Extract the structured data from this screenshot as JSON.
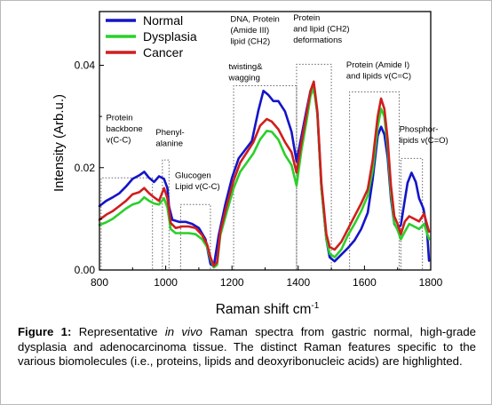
{
  "chart_data": {
    "type": "line",
    "xlabel": "Raman shift cm",
    "xlabel_sup": "-1",
    "ylabel": "Intensity (Arb.u.)",
    "xlim": [
      800,
      1800
    ],
    "ylim": [
      0.0,
      0.0505
    ],
    "xticks": [
      "800",
      "1000",
      "1200",
      "1400",
      "1600",
      "1800"
    ],
    "yticks": [
      "0.00",
      "0.02",
      "0.04"
    ],
    "legend_position": "top-left",
    "series": [
      {
        "name": "Normal",
        "color": "#1414c8",
        "points": [
          [
            800,
            0.0125
          ],
          [
            820,
            0.0135
          ],
          [
            840,
            0.0142
          ],
          [
            860,
            0.015
          ],
          [
            880,
            0.0163
          ],
          [
            900,
            0.0178
          ],
          [
            920,
            0.0185
          ],
          [
            935,
            0.0192
          ],
          [
            950,
            0.018
          ],
          [
            965,
            0.0172
          ],
          [
            980,
            0.0183
          ],
          [
            995,
            0.0178
          ],
          [
            1005,
            0.016
          ],
          [
            1010,
            0.0124
          ],
          [
            1020,
            0.0098
          ],
          [
            1040,
            0.0094
          ],
          [
            1060,
            0.0094
          ],
          [
            1080,
            0.009
          ],
          [
            1100,
            0.0082
          ],
          [
            1120,
            0.006
          ],
          [
            1135,
            0.0012
          ],
          [
            1145,
            0.0007
          ],
          [
            1160,
            0.0068
          ],
          [
            1180,
            0.0128
          ],
          [
            1200,
            0.018
          ],
          [
            1220,
            0.0218
          ],
          [
            1240,
            0.0235
          ],
          [
            1260,
            0.0252
          ],
          [
            1280,
            0.0312
          ],
          [
            1295,
            0.035
          ],
          [
            1310,
            0.0342
          ],
          [
            1325,
            0.033
          ],
          [
            1340,
            0.033
          ],
          [
            1360,
            0.031
          ],
          [
            1380,
            0.027
          ],
          [
            1395,
            0.0212
          ],
          [
            1410,
            0.0262
          ],
          [
            1425,
            0.0312
          ],
          [
            1437,
            0.035
          ],
          [
            1447,
            0.036
          ],
          [
            1458,
            0.0305
          ],
          [
            1470,
            0.016
          ],
          [
            1485,
            0.006
          ],
          [
            1495,
            0.0025
          ],
          [
            1510,
            0.0017
          ],
          [
            1530,
            0.003
          ],
          [
            1550,
            0.0043
          ],
          [
            1570,
            0.0058
          ],
          [
            1590,
            0.008
          ],
          [
            1610,
            0.0112
          ],
          [
            1625,
            0.0178
          ],
          [
            1640,
            0.0262
          ],
          [
            1650,
            0.028
          ],
          [
            1660,
            0.0265
          ],
          [
            1670,
            0.022
          ],
          [
            1680,
            0.014
          ],
          [
            1690,
            0.009
          ],
          [
            1700,
            0.008
          ],
          [
            1710,
            0.0088
          ],
          [
            1720,
            0.013
          ],
          [
            1730,
            0.017
          ],
          [
            1742,
            0.019
          ],
          [
            1755,
            0.0172
          ],
          [
            1765,
            0.014
          ],
          [
            1778,
            0.012
          ],
          [
            1788,
            0.0085
          ],
          [
            1795,
            0.0018
          ]
        ]
      },
      {
        "name": "Dysplasia",
        "color": "#2ad02a",
        "points": [
          [
            800,
            0.0088
          ],
          [
            820,
            0.0093
          ],
          [
            840,
            0.01
          ],
          [
            860,
            0.011
          ],
          [
            880,
            0.012
          ],
          [
            900,
            0.0128
          ],
          [
            920,
            0.0132
          ],
          [
            935,
            0.0142
          ],
          [
            950,
            0.0135
          ],
          [
            965,
            0.013
          ],
          [
            980,
            0.0128
          ],
          [
            995,
            0.014
          ],
          [
            1005,
            0.0122
          ],
          [
            1015,
            0.008
          ],
          [
            1030,
            0.0072
          ],
          [
            1050,
            0.0072
          ],
          [
            1070,
            0.0072
          ],
          [
            1090,
            0.007
          ],
          [
            1110,
            0.006
          ],
          [
            1125,
            0.0045
          ],
          [
            1135,
            0.0022
          ],
          [
            1145,
            0.0005
          ],
          [
            1155,
            0.001
          ],
          [
            1165,
            0.0068
          ],
          [
            1185,
            0.0115
          ],
          [
            1205,
            0.016
          ],
          [
            1225,
            0.0192
          ],
          [
            1245,
            0.021
          ],
          [
            1265,
            0.0228
          ],
          [
            1285,
            0.0255
          ],
          [
            1305,
            0.0272
          ],
          [
            1320,
            0.027
          ],
          [
            1340,
            0.0255
          ],
          [
            1360,
            0.0225
          ],
          [
            1380,
            0.0205
          ],
          [
            1395,
            0.0165
          ],
          [
            1410,
            0.0235
          ],
          [
            1425,
            0.029
          ],
          [
            1437,
            0.034
          ],
          [
            1447,
            0.0355
          ],
          [
            1458,
            0.0305
          ],
          [
            1470,
            0.016
          ],
          [
            1485,
            0.006
          ],
          [
            1495,
            0.0032
          ],
          [
            1510,
            0.0025
          ],
          [
            1530,
            0.004
          ],
          [
            1550,
            0.0068
          ],
          [
            1570,
            0.009
          ],
          [
            1590,
            0.0115
          ],
          [
            1610,
            0.0145
          ],
          [
            1625,
            0.0195
          ],
          [
            1640,
            0.028
          ],
          [
            1650,
            0.0315
          ],
          [
            1660,
            0.03
          ],
          [
            1670,
            0.024
          ],
          [
            1680,
            0.015
          ],
          [
            1690,
            0.0092
          ],
          [
            1700,
            0.0078
          ],
          [
            1710,
            0.006
          ],
          [
            1722,
            0.0075
          ],
          [
            1735,
            0.009
          ],
          [
            1750,
            0.0085
          ],
          [
            1765,
            0.008
          ],
          [
            1780,
            0.009
          ],
          [
            1795,
            0.006
          ]
        ]
      },
      {
        "name": "Cancer",
        "color": "#d01e1e",
        "points": [
          [
            800,
            0.0098
          ],
          [
            820,
            0.0108
          ],
          [
            840,
            0.0115
          ],
          [
            860,
            0.0125
          ],
          [
            880,
            0.0135
          ],
          [
            900,
            0.0148
          ],
          [
            920,
            0.0152
          ],
          [
            935,
            0.016
          ],
          [
            950,
            0.015
          ],
          [
            965,
            0.0142
          ],
          [
            980,
            0.0135
          ],
          [
            995,
            0.016
          ],
          [
            1005,
            0.014
          ],
          [
            1015,
            0.0092
          ],
          [
            1030,
            0.0082
          ],
          [
            1050,
            0.0085
          ],
          [
            1070,
            0.0085
          ],
          [
            1090,
            0.0082
          ],
          [
            1110,
            0.0068
          ],
          [
            1125,
            0.005
          ],
          [
            1135,
            0.0025
          ],
          [
            1145,
            0.0008
          ],
          [
            1155,
            0.0015
          ],
          [
            1165,
            0.0075
          ],
          [
            1185,
            0.0128
          ],
          [
            1205,
            0.0175
          ],
          [
            1225,
            0.021
          ],
          [
            1245,
            0.023
          ],
          [
            1265,
            0.025
          ],
          [
            1285,
            0.0282
          ],
          [
            1305,
            0.0295
          ],
          [
            1320,
            0.029
          ],
          [
            1340,
            0.0275
          ],
          [
            1360,
            0.025
          ],
          [
            1380,
            0.023
          ],
          [
            1395,
            0.019
          ],
          [
            1410,
            0.025
          ],
          [
            1425,
            0.0305
          ],
          [
            1437,
            0.035
          ],
          [
            1447,
            0.0368
          ],
          [
            1458,
            0.031
          ],
          [
            1470,
            0.017
          ],
          [
            1485,
            0.007
          ],
          [
            1495,
            0.0045
          ],
          [
            1510,
            0.004
          ],
          [
            1530,
            0.0055
          ],
          [
            1550,
            0.008
          ],
          [
            1570,
            0.0105
          ],
          [
            1590,
            0.013
          ],
          [
            1610,
            0.0158
          ],
          [
            1625,
            0.0215
          ],
          [
            1640,
            0.03
          ],
          [
            1650,
            0.0335
          ],
          [
            1660,
            0.0315
          ],
          [
            1670,
            0.0255
          ],
          [
            1680,
            0.0165
          ],
          [
            1690,
            0.0105
          ],
          [
            1700,
            0.009
          ],
          [
            1710,
            0.007
          ],
          [
            1722,
            0.0095
          ],
          [
            1735,
            0.0105
          ],
          [
            1750,
            0.01
          ],
          [
            1765,
            0.0095
          ],
          [
            1780,
            0.011
          ],
          [
            1795,
            0.0075
          ]
        ]
      }
    ],
    "bands": [
      {
        "x0": 805,
        "x1": 960,
        "ytop": 0.018
      },
      {
        "x0": 990,
        "x1": 1010,
        "ytop": 0.0215
      },
      {
        "x0": 1045,
        "x1": 1135,
        "ytop": 0.0128
      },
      {
        "x0": 1205,
        "x1": 1395,
        "ytop": 0.036
      },
      {
        "x0": 1395,
        "x1": 1500,
        "ytop": 0.0402
      },
      {
        "x0": 1555,
        "x1": 1705,
        "ytop": 0.0348
      },
      {
        "x0": 1710,
        "x1": 1775,
        "ytop": 0.0218
      }
    ],
    "annotations": [
      {
        "lines": [
          "Protein",
          "backbone",
          "v(C-C)"
        ],
        "x": 820,
        "y": 0.0292
      },
      {
        "lines": [
          "Phenyl-",
          "alanine"
        ],
        "x": 970,
        "y": 0.0264
      },
      {
        "lines": [
          "Glucogen",
          "Lipid v(C-C)"
        ],
        "x": 1028,
        "y": 0.018
      },
      {
        "lines": [
          "DNA, Protein",
          "(Amide III)",
          "lipid (CH2)"
        ],
        "x": 1195,
        "y": 0.0485
      },
      {
        "lines": [
          "twisting&",
          "wagging"
        ],
        "x": 1190,
        "y": 0.0392
      },
      {
        "lines": [
          "Protein",
          "and lipid (CH2)",
          "deformations"
        ],
        "x": 1385,
        "y": 0.0488
      },
      {
        "lines": [
          "Protein (Amide I)",
          "and lipids v(C=C)"
        ],
        "x": 1545,
        "y": 0.0396
      },
      {
        "lines": [
          "Phosphor-",
          "lipids v(C=O)"
        ],
        "x": 1705,
        "y": 0.027
      }
    ]
  },
  "caption": {
    "label": "Figure 1:",
    "text_before": " Representative ",
    "italic": "in vivo",
    "text_after": " Raman spectra from gastric normal, high-grade dysplasia and adenocarcinoma tissue. The distinct Raman features specific to the various biomolecules (i.e., proteins, lipids and deoxyribonucleic acids) are highlighted."
  }
}
